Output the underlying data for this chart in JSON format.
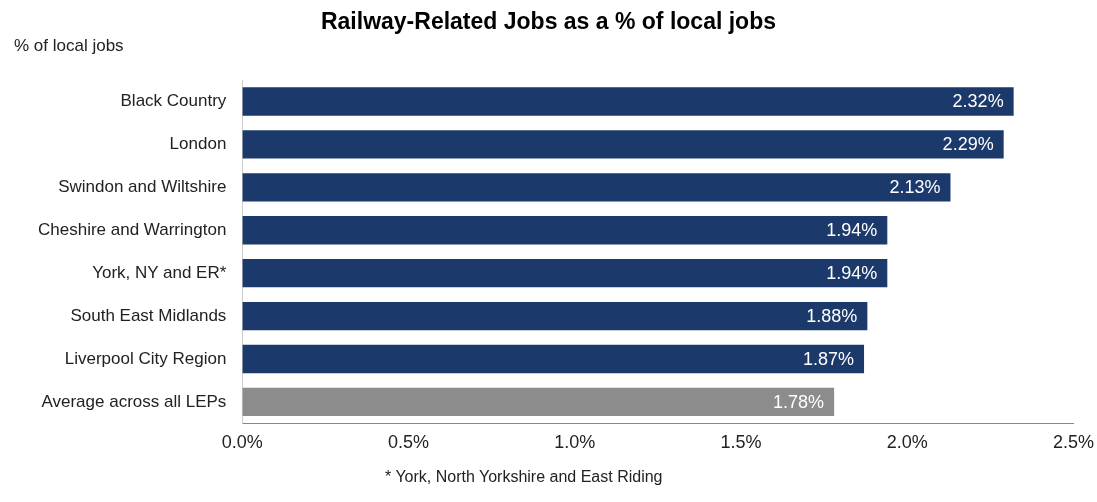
{
  "chart_data": {
    "type": "bar",
    "orientation": "horizontal",
    "title": "Railway-Related Jobs as a % of local jobs",
    "xlabel": "% of local jobs",
    "categories": [
      "Black Country",
      "London",
      "Swindon and Wiltshire",
      "Cheshire and Warrington",
      "York, NY and ER*",
      "South East Midlands",
      "Liverpool City Region",
      "Average across all LEPs"
    ],
    "values": [
      2.32,
      2.29,
      2.13,
      1.94,
      1.94,
      1.88,
      1.87,
      1.78
    ],
    "colors": [
      "#1b3a6b",
      "#1b3a6b",
      "#1b3a6b",
      "#1b3a6b",
      "#1b3a6b",
      "#1b3a6b",
      "#1b3a6b",
      "#8c8c8c"
    ],
    "value_labels": [
      "2.32%",
      "2.29%",
      "2.13%",
      "1.94%",
      "1.94%",
      "1.88%",
      "1.87%",
      "1.78%"
    ],
    "xlim": [
      0,
      2.5
    ],
    "xticks": [
      {
        "value": 0,
        "label": "0.0%"
      },
      {
        "value": 0.5,
        "label": "0.5%"
      },
      {
        "value": 1,
        "label": "1.0%"
      },
      {
        "value": 1.5,
        "label": "1.5%"
      },
      {
        "value": 2,
        "label": "2.0%"
      },
      {
        "value": 2.5,
        "label": "2.5%"
      }
    ],
    "grid": false,
    "legend": false,
    "annotations": [
      "* York, North Yorkshire and East Riding"
    ]
  }
}
